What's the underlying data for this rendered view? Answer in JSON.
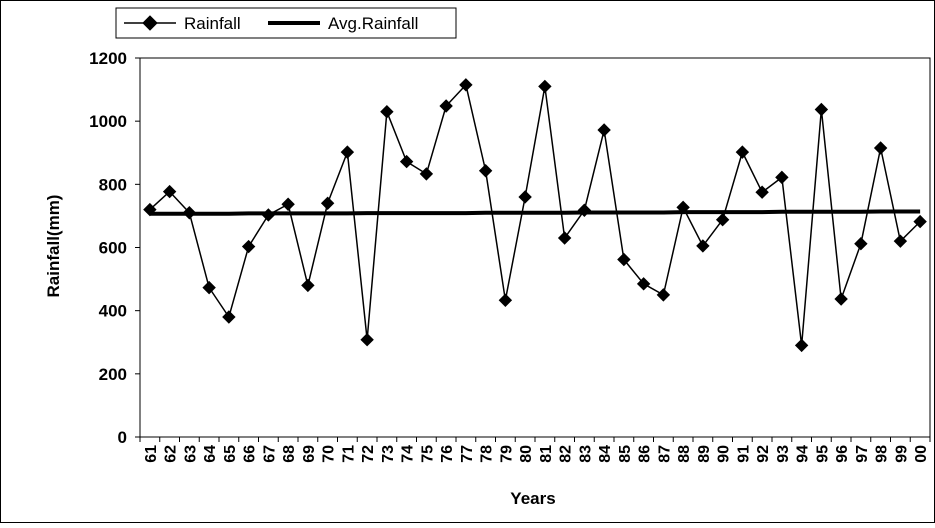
{
  "chart_data": {
    "type": "line",
    "title": "",
    "xlabel": "Years",
    "ylabel": "Rainfall(mm)",
    "ylim": [
      0,
      1200
    ],
    "yticks": [
      0,
      200,
      400,
      600,
      800,
      1000,
      1200
    ],
    "grid": false,
    "legend_position": "top-left",
    "categories": [
      "61",
      "62",
      "63",
      "64",
      "65",
      "66",
      "67",
      "68",
      "69",
      "70",
      "71",
      "72",
      "73",
      "74",
      "75",
      "76",
      "77",
      "78",
      "79",
      "80",
      "81",
      "82",
      "83",
      "84",
      "85",
      "86",
      "87",
      "88",
      "89",
      "90",
      "91",
      "92",
      "93",
      "94",
      "95",
      "96",
      "97",
      "98",
      "99",
      "00"
    ],
    "series": [
      {
        "name": "Rainfall",
        "marker": "diamond",
        "color": "#000000",
        "values": [
          720,
          777,
          710,
          473,
          380,
          603,
          703,
          737,
          480,
          740,
          902,
          308,
          1030,
          872,
          833,
          1048,
          1115,
          843,
          433,
          760,
          1110,
          630,
          718,
          972,
          562,
          485,
          450,
          727,
          605,
          688,
          902,
          775,
          822,
          290,
          1037,
          437,
          612,
          915,
          620,
          682
        ]
      },
      {
        "name": "Avg.Rainfall",
        "marker": "none",
        "color": "#000000",
        "values": [
          707,
          707,
          707,
          707,
          707,
          708,
          708,
          708,
          708,
          708,
          708,
          709,
          709,
          709,
          709,
          709,
          709,
          710,
          710,
          710,
          710,
          710,
          711,
          711,
          711,
          711,
          711,
          712,
          712,
          712,
          712,
          712,
          713,
          713,
          713,
          713,
          713,
          714,
          714,
          714
        ]
      }
    ]
  }
}
